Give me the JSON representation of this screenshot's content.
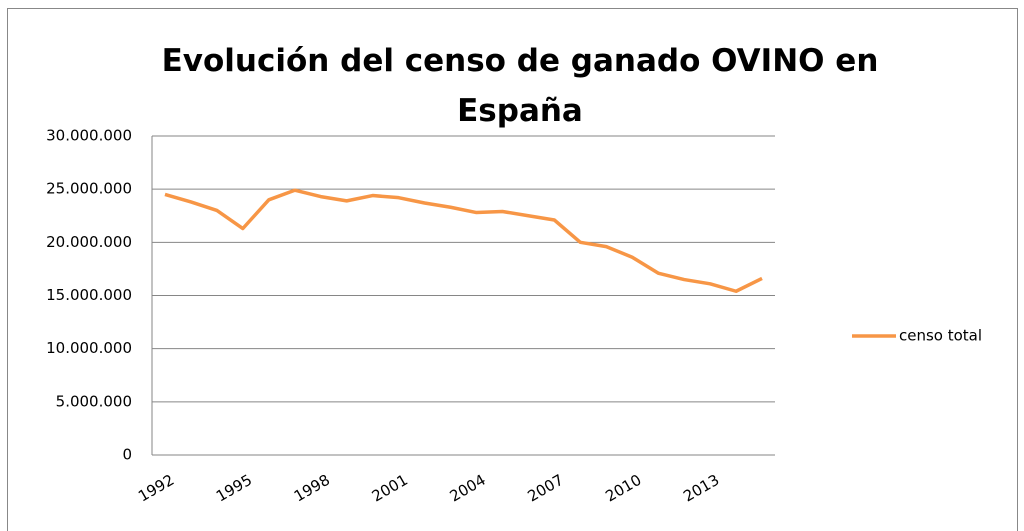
{
  "chart_data": {
    "type": "line",
    "title": "Evolución del censo de ganado OVINO en España",
    "categories": [
      "1992",
      null,
      null,
      "1995",
      null,
      null,
      "1998",
      null,
      null,
      "2001",
      null,
      null,
      "2004",
      null,
      null,
      "2007",
      null,
      null,
      "2010",
      null,
      null,
      "2013",
      null,
      null
    ],
    "series": [
      {
        "name": "censo total",
        "color": "#f79646",
        "values": [
          24500000,
          23800000,
          23000000,
          21300000,
          24000000,
          24900000,
          24300000,
          23900000,
          24400000,
          24200000,
          23700000,
          23300000,
          22800000,
          22900000,
          22500000,
          22100000,
          20000000,
          19600000,
          18600000,
          17100000,
          16500000,
          16100000,
          15400000,
          16600000
        ]
      }
    ],
    "ylim": [
      0,
      30000000
    ],
    "yticks": [
      0,
      {
        "value": 5000000,
        "label": "5.000.000"
      },
      {
        "value": 10000000,
        "label": "10.000.000"
      },
      {
        "value": 15000000,
        "label": "15.000.000"
      },
      {
        "value": 20000000,
        "label": "20.000.000"
      },
      {
        "value": 25000000,
        "label": "25.000.000"
      },
      {
        "value": 30000000,
        "label": "30.000.000"
      }
    ],
    "grid": true,
    "legend": "right"
  }
}
